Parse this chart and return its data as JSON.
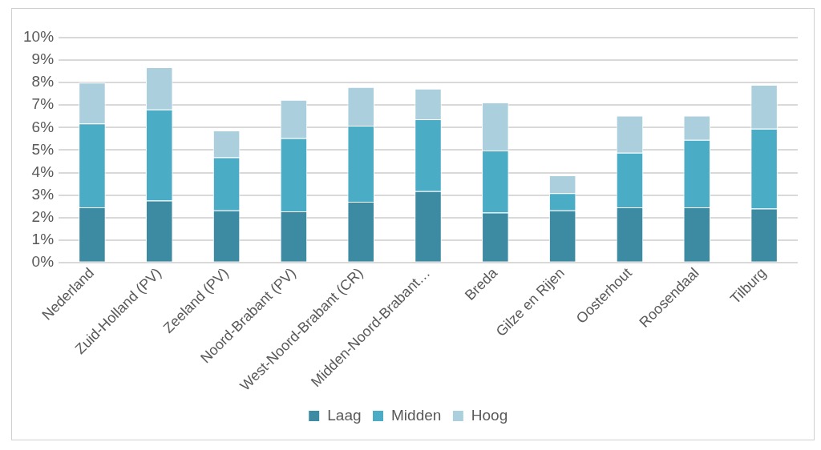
{
  "chart_data": {
    "type": "bar",
    "stacked": true,
    "categories": [
      "Nederland",
      "Zuid-Holland (PV)",
      "Zeeland (PV)",
      "Noord-Brabant (PV)",
      "West-Noord-Brabant (CR)",
      "Midden-Noord-Brabant…",
      "Breda",
      "Gilze en Rijen",
      "Oosterhout",
      "Roosendaal",
      "Tilburg"
    ],
    "series": [
      {
        "name": "Laag",
        "color": "#3d8ba3",
        "values": [
          2.45,
          2.75,
          2.32,
          2.27,
          2.7,
          3.17,
          2.22,
          2.32,
          2.45,
          2.45,
          2.4
        ]
      },
      {
        "name": "Midden",
        "color": "#4bacc6",
        "values": [
          3.73,
          4.05,
          2.36,
          3.26,
          3.38,
          3.2,
          2.76,
          0.76,
          2.43,
          3.0,
          3.55
        ]
      },
      {
        "name": "Hoog",
        "color": "#abcfdd",
        "values": [
          1.82,
          1.88,
          1.19,
          1.7,
          1.72,
          1.36,
          2.14,
          0.8,
          1.65,
          1.08,
          1.95
        ]
      }
    ],
    "ylim": [
      0,
      10
    ],
    "yticks": [
      {
        "value": 0,
        "label": "0%"
      },
      {
        "value": 1,
        "label": "1%"
      },
      {
        "value": 2,
        "label": "2%"
      },
      {
        "value": 3,
        "label": "3%"
      },
      {
        "value": 4,
        "label": "4%"
      },
      {
        "value": 5,
        "label": "5%"
      },
      {
        "value": 6,
        "label": "6%"
      },
      {
        "value": 7,
        "label": "7%"
      },
      {
        "value": 8,
        "label": "8%"
      },
      {
        "value": 9,
        "label": "9%"
      },
      {
        "value": 10,
        "label": "10%"
      }
    ],
    "grid": "y",
    "legend": "bottom"
  }
}
